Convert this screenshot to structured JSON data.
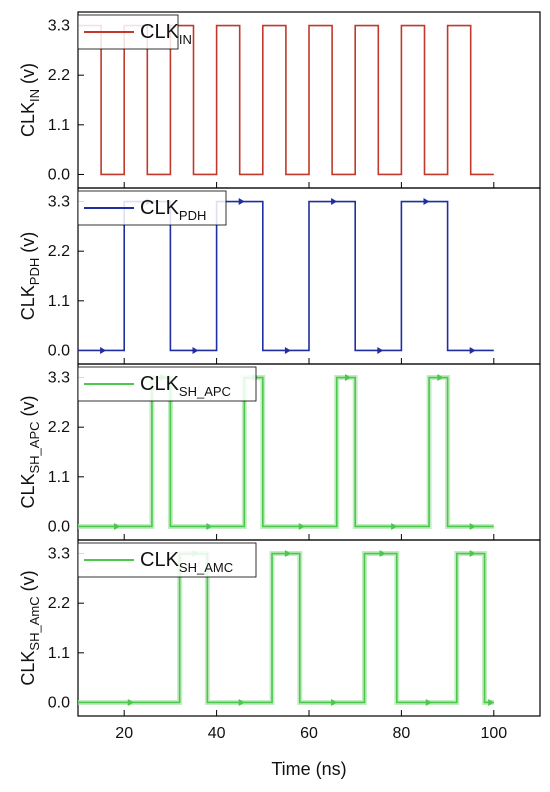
{
  "chart_data": {
    "type": "line",
    "x_axis": {
      "label": "Time (ns)",
      "lim": [
        10,
        110
      ],
      "ticks": [
        20,
        40,
        60,
        80,
        100
      ],
      "tick_labels": [
        "20",
        "40",
        "60",
        "80",
        "100"
      ]
    },
    "y_ticks": [
      0.0,
      1.1,
      2.2,
      3.3
    ],
    "y_tick_labels": [
      "0.0",
      "1.1",
      "2.2",
      "3.3"
    ],
    "panels": [
      {
        "ylim": [
          -0.3,
          3.6
        ],
        "ylabel": {
          "main": "CLK",
          "sub": "IN",
          "unit": " (v)"
        },
        "legend": {
          "main": "CLK",
          "sub": "IN"
        },
        "series": [
          {
            "name": "CLKIN",
            "color": "#c0392b",
            "markers": false,
            "x": [
              10,
              15,
              15,
              20,
              20,
              25,
              25,
              30,
              30,
              35,
              35,
              40,
              40,
              45,
              45,
              50,
              50,
              55,
              55,
              60,
              60,
              65,
              65,
              70,
              70,
              75,
              75,
              80,
              80,
              85,
              85,
              90,
              90,
              95,
              95,
              100
            ],
            "y": [
              3.3,
              3.3,
              0,
              0,
              3.3,
              3.3,
              0,
              0,
              3.3,
              3.3,
              0,
              0,
              3.3,
              3.3,
              0,
              0,
              3.3,
              3.3,
              0,
              0,
              3.3,
              3.3,
              0,
              0,
              3.3,
              3.3,
              0,
              0,
              3.3,
              3.3,
              0,
              0,
              3.3,
              3.3,
              0,
              0
            ]
          }
        ]
      },
      {
        "ylim": [
          -0.3,
          3.6
        ],
        "ylabel": {
          "main": "CLK",
          "sub": "PDH",
          "unit": " (v)"
        },
        "legend": {
          "main": "CLK",
          "sub": "PDH"
        },
        "series": [
          {
            "name": "CLKPDH",
            "color": "#1f2fa0",
            "markers": true,
            "x": [
              10,
              20,
              20,
              30,
              30,
              40,
              40,
              50,
              50,
              60,
              60,
              70,
              70,
              80,
              80,
              90,
              90,
              100
            ],
            "y": [
              0,
              0,
              3.3,
              3.3,
              0,
              0,
              3.3,
              3.3,
              0,
              0,
              3.3,
              3.3,
              0,
              0,
              3.3,
              3.3,
              0,
              0
            ]
          }
        ]
      },
      {
        "ylim": [
          -0.3,
          3.6
        ],
        "ylabel": {
          "main": "CLK",
          "sub": "SH_APC",
          "unit": " (v)"
        },
        "legend": {
          "main": "CLK",
          "sub": "SH_APC"
        },
        "series": [
          {
            "name": "CLKSH_APC",
            "color": "#4cc64c",
            "markers": true,
            "x": [
              10,
              26,
              26,
              30,
              30,
              46,
              46,
              50,
              50,
              66,
              66,
              70,
              70,
              86,
              86,
              90,
              90,
              100
            ],
            "y": [
              0,
              0,
              3.3,
              3.3,
              0,
              0,
              3.3,
              3.3,
              0,
              0,
              3.3,
              3.3,
              0,
              0,
              3.3,
              3.3,
              0,
              0
            ]
          }
        ]
      },
      {
        "ylim": [
          -0.3,
          3.6
        ],
        "ylabel": {
          "main": "CLK",
          "sub": "SH_AmC",
          "unit": " (v)"
        },
        "legend": {
          "main": "CLK",
          "sub": "SH_AMC"
        },
        "series": [
          {
            "name": "CLKSH_AMC",
            "color": "#4cc64c",
            "markers": true,
            "x": [
              10,
              32,
              32,
              38,
              38,
              52,
              52,
              58,
              58,
              72,
              72,
              79,
              79,
              92,
              92,
              98,
              98,
              100
            ],
            "y": [
              0,
              0,
              3.3,
              3.3,
              0,
              0,
              3.3,
              3.3,
              0,
              0,
              3.3,
              3.3,
              0,
              0,
              3.3,
              3.3,
              0,
              0
            ]
          }
        ]
      }
    ]
  }
}
